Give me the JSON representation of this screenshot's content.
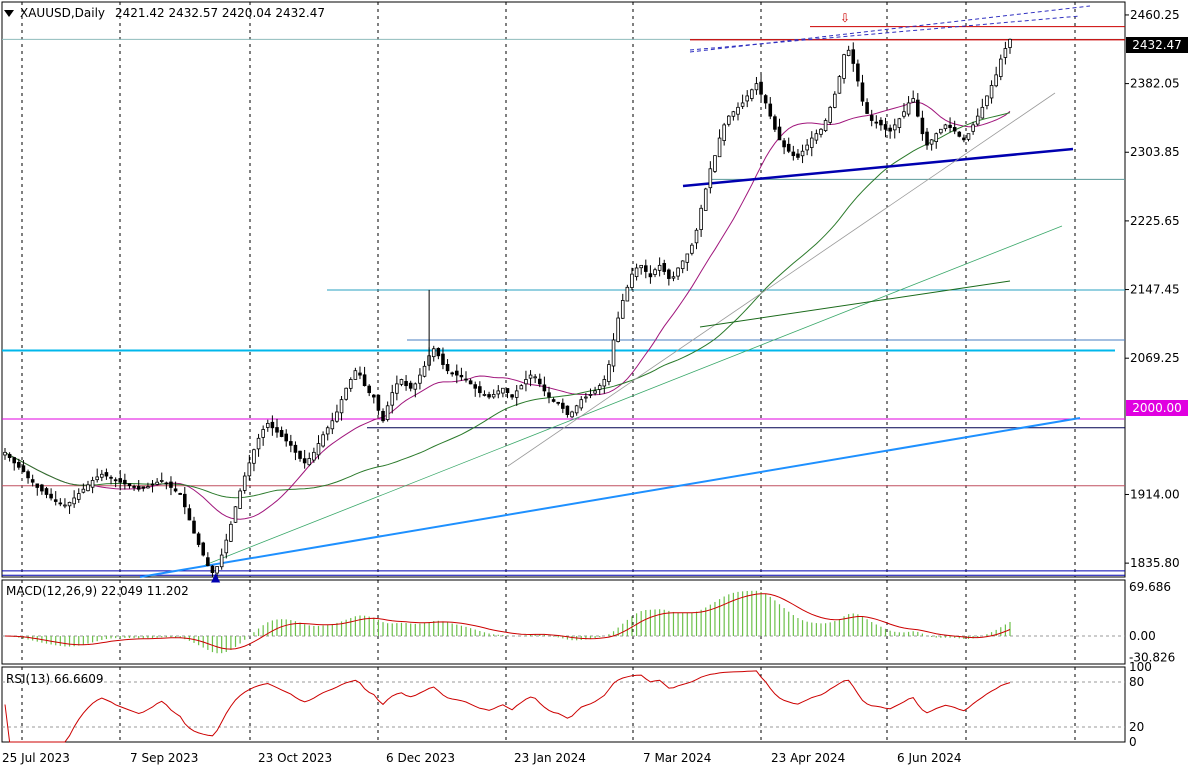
{
  "header": {
    "symbol": "XAUUSD,Daily",
    "ohlc": "2421.42 2432.57 2420.04 2432.47"
  },
  "price_tag": {
    "current": "2432.47",
    "level_2000": "2000.00"
  },
  "macd": {
    "label": "MACD(12,26,9) 22.049 11.202"
  },
  "rsi": {
    "label": "RSI(13) 66.6609"
  },
  "colors": {
    "sma_fast": "#a0167c",
    "sma_slow": "#2b7a2b",
    "macd_line": "#cc0000",
    "macd_hist": "#6cc04a",
    "rsi_line": "#cc0000",
    "hline_cyan": "#00b7eb",
    "trend_blue": "#1e90ff",
    "trend_dark": "#0000b0",
    "resistance": "#cc0000",
    "magenta": "#e000e0"
  },
  "chart_data": [
    {
      "type": "candlestick",
      "title": "XAUUSD,Daily",
      "y_ticks": [
        "2460.25",
        "2382.05",
        "2303.85",
        "2225.65",
        "2147.45",
        "2069.25",
        "1914.00",
        "1835.80"
      ],
      "x_ticks": [
        "25 Jul 2023",
        "7 Sep 2023",
        "23 Oct 2023",
        "6 Dec 2023",
        "23 Jan 2024",
        "7 Mar 2024",
        "23 Apr 2024",
        "6 Jun 2024"
      ],
      "ylim": [
        1820,
        2475
      ],
      "grid": "vertical dashed",
      "last_close": 2432.47,
      "horizontal_levels": [
        2432.47,
        2447,
        2273,
        2147,
        2090,
        2078,
        2000,
        1990,
        1924,
        1827,
        1822
      ],
      "approx_closes": [
        1962,
        1956,
        1950,
        1945,
        1940,
        1933,
        1928,
        1922,
        1918,
        1914,
        1910,
        1906,
        1904,
        1902,
        1905,
        1910,
        1915,
        1920,
        1925,
        1930,
        1934,
        1937,
        1935,
        1933,
        1930,
        1928,
        1926,
        1924,
        1922,
        1920,
        1921,
        1923,
        1925,
        1928,
        1930,
        1927,
        1922,
        1918,
        1914,
        1900,
        1885,
        1870,
        1857,
        1845,
        1833,
        1825,
        1832,
        1845,
        1862,
        1880,
        1900,
        1918,
        1935,
        1950,
        1965,
        1978,
        1988,
        1995,
        1990,
        1985,
        1980,
        1975,
        1970,
        1962,
        1955,
        1950,
        1955,
        1962,
        1972,
        1982,
        1990,
        1998,
        2008,
        2022,
        2035,
        2045,
        2055,
        2050,
        2038,
        2030,
        2025,
        2010,
        1998,
        2015,
        2030,
        2040,
        2045,
        2038,
        2035,
        2040,
        2050,
        2060,
        2072,
        2080,
        2072,
        2062,
        2055,
        2052,
        2050,
        2048,
        2045,
        2040,
        2035,
        2030,
        2028,
        2025,
        2028,
        2032,
        2035,
        2030,
        2025,
        2032,
        2038,
        2045,
        2050,
        2048,
        2040,
        2032,
        2025,
        2020,
        2018,
        2012,
        2005,
        2008,
        2015,
        2022,
        2025,
        2028,
        2032,
        2038,
        2045,
        2062,
        2090,
        2115,
        2135,
        2150,
        2165,
        2172,
        2175,
        2168,
        2162,
        2170,
        2175,
        2168,
        2160,
        2162,
        2172,
        2180,
        2188,
        2198,
        2215,
        2240,
        2262,
        2285,
        2300,
        2320,
        2335,
        2345,
        2350,
        2355,
        2360,
        2368,
        2375,
        2382,
        2370,
        2360,
        2345,
        2330,
        2318,
        2310,
        2305,
        2300,
        2298,
        2305,
        2312,
        2320,
        2325,
        2330,
        2340,
        2355,
        2370,
        2390,
        2415,
        2420,
        2405,
        2385,
        2362,
        2348,
        2340,
        2338,
        2335,
        2330,
        2328,
        2335,
        2342,
        2350,
        2360,
        2365,
        2345,
        2325,
        2312,
        2318,
        2325,
        2330,
        2335,
        2332,
        2328,
        2322,
        2318,
        2325,
        2335,
        2345,
        2355,
        2368,
        2380,
        2392,
        2410,
        2422,
        2432.47
      ]
    },
    {
      "type": "bar",
      "title": "MACD(12,26,9) 22.049 11.202",
      "y_ticks": [
        "69.686",
        "0.00",
        "-30.826"
      ],
      "ylim": [
        -40,
        80
      ],
      "macd": 22.049,
      "signal": 11.202
    },
    {
      "type": "line",
      "title": "RSI(13) 66.6609",
      "y_ticks": [
        "100",
        "80",
        "20",
        "0"
      ],
      "ylim": [
        0,
        100
      ],
      "levels": [
        80,
        20
      ],
      "last_value": 66.6609
    }
  ]
}
